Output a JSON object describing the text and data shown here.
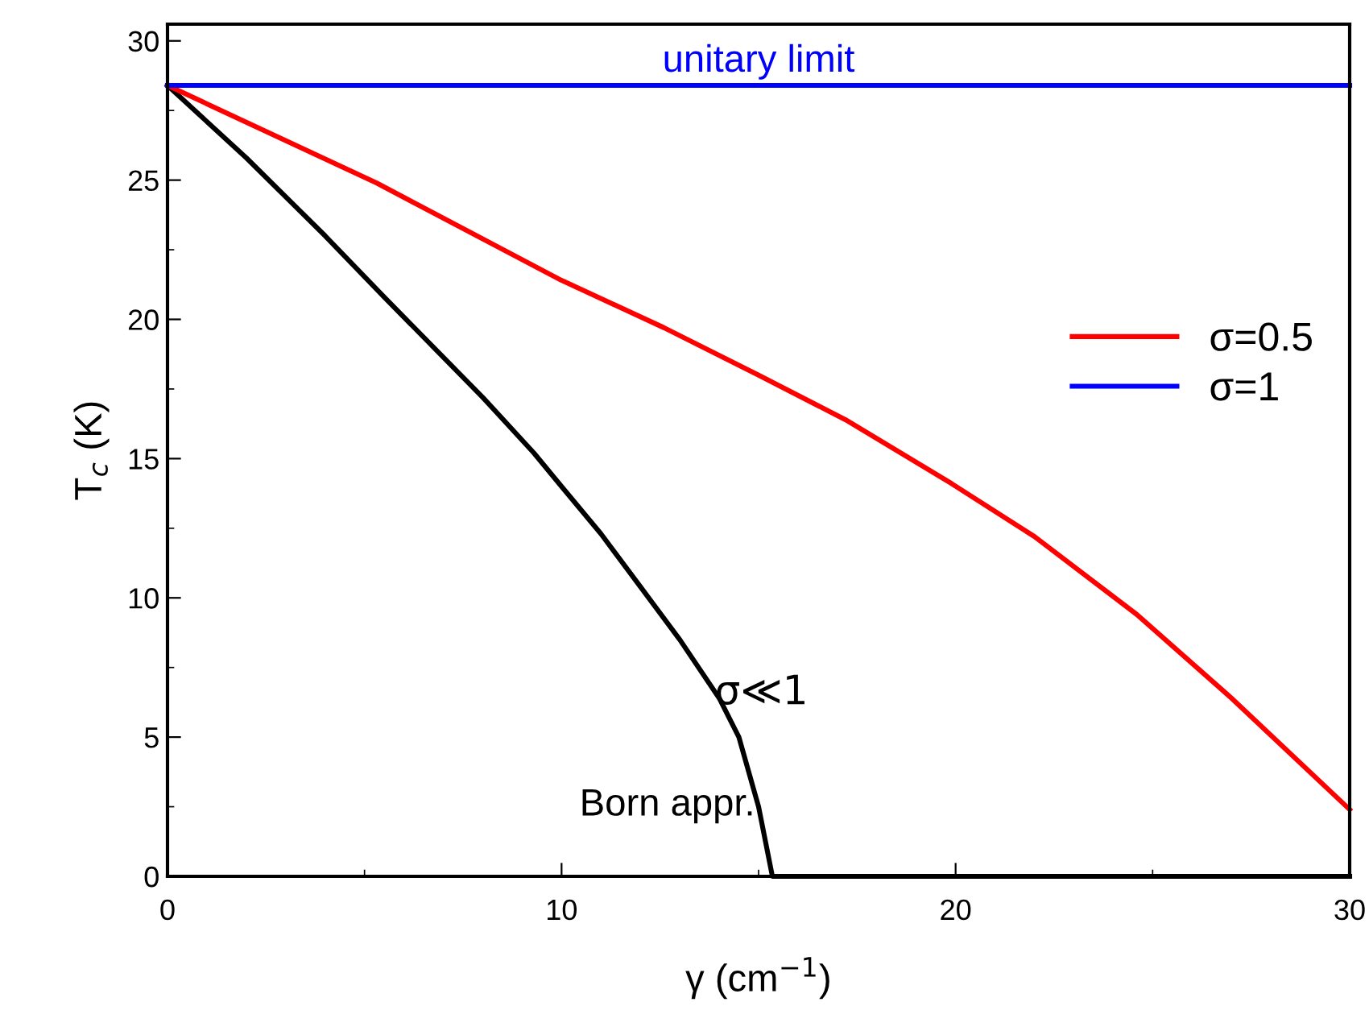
{
  "chart_data": {
    "type": "line",
    "xlabel": "γ (cm$^{−1}$)",
    "ylabel": "T$_{c}$ (K)",
    "xlim": [
      0,
      30
    ],
    "ylim": [
      0,
      30.6
    ],
    "xticks": [
      0,
      10,
      20,
      30
    ],
    "yticks": [
      0,
      5,
      10,
      15,
      20,
      25,
      30
    ],
    "grid": false,
    "legend": "right",
    "marker": "none",
    "line_style": "solid",
    "series": [
      {
        "name": null,
        "color": "#000000",
        "x": [
          0,
          2,
          4,
          5.5,
          8,
          9.3,
          10,
          11,
          12,
          13,
          14,
          14.5,
          15,
          15.35,
          20,
          30
        ],
        "values": [
          28.4,
          25.8,
          23.0,
          20.8,
          17.2,
          15.2,
          14.0,
          12.3,
          10.4,
          8.5,
          6.4,
          5.0,
          2.5,
          0,
          0,
          0
        ]
      },
      {
        "name": "σ=0.5",
        "color": "#ff0000",
        "x": [
          0,
          5.3,
          10,
          12.6,
          15,
          17.2,
          19.9,
          22,
          24.6,
          27,
          30
        ],
        "values": [
          28.4,
          24.9,
          21.4,
          19.7,
          18.0,
          16.4,
          14.1,
          12.2,
          9.4,
          6.4,
          2.4
        ]
      },
      {
        "name": "σ=1",
        "color": "#0000ff",
        "x": [
          0,
          30
        ],
        "values": [
          28.4,
          28.4
        ]
      }
    ],
    "annotations": [
      "unitary limit",
      "σ≪1",
      "Born appr."
    ]
  }
}
